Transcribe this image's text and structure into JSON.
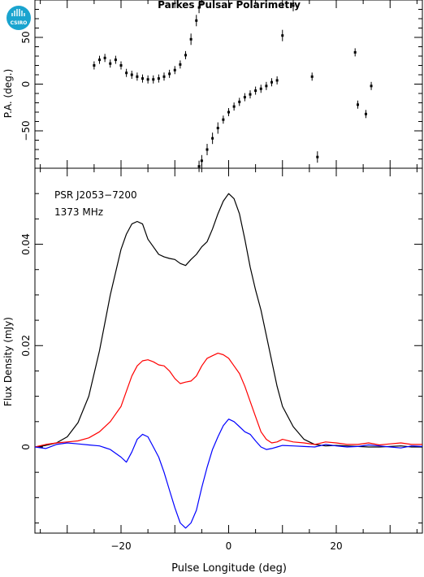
{
  "logo": {
    "text": "CSIRO",
    "color": "#1aa4cf"
  },
  "chart_data": {
    "title": "Parkes Pulsar Polarimetry",
    "xlabel": "Pulse Longitude (deg)",
    "xlim": [
      -36,
      36
    ],
    "xticks": [
      -20,
      0,
      20
    ],
    "pa_panel": {
      "type": "scatter",
      "ylabel": "P.A. (deg.)",
      "ylim": [
        -90,
        90
      ],
      "yticks": [
        -50,
        0,
        50
      ],
      "points": [
        {
          "x": -25,
          "y": 20
        },
        {
          "x": -24,
          "y": 26
        },
        {
          "x": -23,
          "y": 28
        },
        {
          "x": -22,
          "y": 22
        },
        {
          "x": -21,
          "y": 26
        },
        {
          "x": -20,
          "y": 20
        },
        {
          "x": -19,
          "y": 12
        },
        {
          "x": -18,
          "y": 10
        },
        {
          "x": -17,
          "y": 8
        },
        {
          "x": -16,
          "y": 6
        },
        {
          "x": -15,
          "y": 5
        },
        {
          "x": -14,
          "y": 5
        },
        {
          "x": -13,
          "y": 6
        },
        {
          "x": -12,
          "y": 8
        },
        {
          "x": -11,
          "y": 11
        },
        {
          "x": -10,
          "y": 15
        },
        {
          "x": -9,
          "y": 21
        },
        {
          "x": -8,
          "y": 31
        },
        {
          "x": -7,
          "y": 48
        },
        {
          "x": -6,
          "y": 68
        },
        {
          "x": -5.5,
          "y": 82
        },
        {
          "x": -5.5,
          "y": -88
        },
        {
          "x": -5,
          "y": -82
        },
        {
          "x": -4,
          "y": -70
        },
        {
          "x": -3,
          "y": -58
        },
        {
          "x": -2,
          "y": -47
        },
        {
          "x": -1,
          "y": -38
        },
        {
          "x": 0,
          "y": -30
        },
        {
          "x": 1,
          "y": -24
        },
        {
          "x": 2,
          "y": -19
        },
        {
          "x": 3,
          "y": -14
        },
        {
          "x": 4,
          "y": -11
        },
        {
          "x": 5,
          "y": -7
        },
        {
          "x": 6,
          "y": -5
        },
        {
          "x": 7,
          "y": -2
        },
        {
          "x": 8,
          "y": 2
        },
        {
          "x": 9,
          "y": 4
        },
        {
          "x": 10,
          "y": 52
        },
        {
          "x": 12,
          "y": 84
        },
        {
          "x": 15.5,
          "y": 8
        },
        {
          "x": 16.5,
          "y": -78
        },
        {
          "x": 23.5,
          "y": 34
        },
        {
          "x": 24,
          "y": -22
        },
        {
          "x": 25.5,
          "y": -32
        },
        {
          "x": 26.5,
          "y": -2
        }
      ]
    },
    "flux_panel": {
      "type": "line",
      "ylabel": "Flux Density (mJy)",
      "ylim": [
        -0.017,
        0.055
      ],
      "yticks": [
        0,
        0.02,
        0.04
      ],
      "annotations": [
        "PSR J2053−7200",
        "1373 MHz"
      ],
      "x": [
        -36,
        -34,
        -32,
        -30,
        -28,
        -26,
        -24,
        -22,
        -20,
        -19,
        -18,
        -17,
        -16,
        -15,
        -14,
        -13,
        -12,
        -11,
        -10,
        -9,
        -8,
        -7,
        -6,
        -5,
        -4,
        -3,
        -2,
        -1,
        0,
        1,
        2,
        3,
        4,
        5,
        6,
        7,
        8,
        9,
        10,
        12,
        14,
        16,
        18,
        20,
        22,
        24,
        26,
        28,
        30,
        32,
        34,
        36
      ],
      "series": [
        {
          "color": "#000000",
          "values": [
            0.0,
            0.0003,
            0.0008,
            0.002,
            0.0048,
            0.01,
            0.019,
            0.03,
            0.039,
            0.042,
            0.044,
            0.0445,
            0.044,
            0.041,
            0.0395,
            0.038,
            0.0375,
            0.0372,
            0.037,
            0.0362,
            0.0358,
            0.037,
            0.038,
            0.0395,
            0.0405,
            0.043,
            0.046,
            0.0485,
            0.05,
            0.049,
            0.046,
            0.041,
            0.0355,
            0.031,
            0.027,
            0.022,
            0.017,
            0.012,
            0.008,
            0.004,
            0.0015,
            0.0005,
            0.0002,
            0.0003,
            0.0002,
            0.0001,
            0.0,
            0.0,
            0.0001,
            0.0002,
            0.0,
            0.0
          ]
        },
        {
          "color": "#ff0000",
          "values": [
            0.0,
            0.0005,
            0.0008,
            0.001,
            0.0012,
            0.0018,
            0.003,
            0.005,
            0.008,
            0.011,
            0.014,
            0.016,
            0.017,
            0.0172,
            0.0168,
            0.0162,
            0.016,
            0.015,
            0.0135,
            0.0125,
            0.0128,
            0.013,
            0.014,
            0.016,
            0.0175,
            0.018,
            0.0185,
            0.0182,
            0.0175,
            0.016,
            0.0145,
            0.012,
            0.009,
            0.006,
            0.003,
            0.0015,
            0.0008,
            0.001,
            0.0015,
            0.001,
            0.0008,
            0.0005,
            0.001,
            0.0008,
            0.0005,
            0.0005,
            0.0008,
            0.0004,
            0.0006,
            0.0008,
            0.0005,
            0.0005
          ]
        },
        {
          "color": "#0000ff",
          "values": [
            0.0,
            -0.0003,
            0.0005,
            0.0008,
            0.0006,
            0.0004,
            0.0002,
            -0.0005,
            -0.002,
            -0.003,
            -0.001,
            0.0015,
            0.0025,
            0.002,
            0.0,
            -0.002,
            -0.005,
            -0.0085,
            -0.012,
            -0.015,
            -0.016,
            -0.015,
            -0.0125,
            -0.008,
            -0.004,
            -0.0005,
            0.002,
            0.0042,
            0.0055,
            0.005,
            0.004,
            0.003,
            0.0025,
            0.0012,
            0.0,
            -0.0005,
            -0.0003,
            0.0,
            0.0003,
            0.0002,
            0.0001,
            0.0,
            0.0005,
            0.0002,
            0.0,
            0.0001,
            0.0004,
            0.0002,
            0.0,
            -0.0002,
            0.0002,
            0.0001
          ]
        }
      ]
    }
  }
}
